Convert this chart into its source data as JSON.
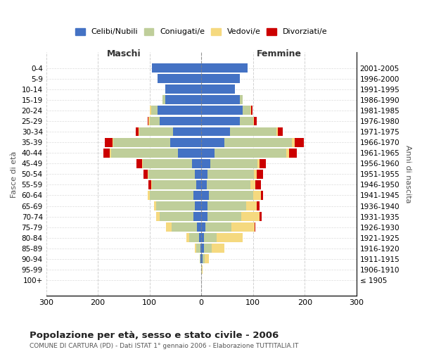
{
  "age_groups": [
    "100+",
    "95-99",
    "90-94",
    "85-89",
    "80-84",
    "75-79",
    "70-74",
    "65-69",
    "60-64",
    "55-59",
    "50-54",
    "45-49",
    "40-44",
    "35-39",
    "30-34",
    "25-29",
    "20-24",
    "15-19",
    "10-14",
    "5-9",
    "0-4"
  ],
  "birth_years": [
    "≤ 1905",
    "1906-1910",
    "1911-1915",
    "1916-1920",
    "1921-1925",
    "1926-1930",
    "1931-1935",
    "1936-1940",
    "1941-1945",
    "1946-1950",
    "1951-1955",
    "1956-1960",
    "1961-1965",
    "1966-1970",
    "1971-1975",
    "1976-1980",
    "1981-1985",
    "1986-1990",
    "1991-1995",
    "1996-2000",
    "2001-2005"
  ],
  "maschi": {
    "celibi": [
      0,
      0,
      1,
      2,
      4,
      8,
      15,
      12,
      15,
      10,
      12,
      18,
      45,
      60,
      55,
      80,
      85,
      70,
      70,
      85,
      95
    ],
    "coniugati": [
      0,
      0,
      2,
      8,
      20,
      50,
      65,
      75,
      85,
      85,
      90,
      95,
      130,
      110,
      65,
      20,
      12,
      5,
      0,
      0,
      0
    ],
    "vedovi": [
      0,
      0,
      0,
      2,
      5,
      10,
      8,
      5,
      3,
      2,
      2,
      2,
      2,
      2,
      2,
      2,
      2,
      0,
      0,
      0,
      0
    ],
    "divorziati": [
      0,
      0,
      0,
      0,
      0,
      0,
      0,
      0,
      0,
      5,
      8,
      10,
      12,
      15,
      5,
      2,
      0,
      0,
      0,
      0,
      0
    ]
  },
  "femmine": {
    "nubili": [
      0,
      0,
      2,
      5,
      5,
      8,
      12,
      12,
      15,
      10,
      12,
      18,
      25,
      45,
      55,
      75,
      80,
      75,
      65,
      75,
      90
    ],
    "coniugate": [
      0,
      1,
      5,
      15,
      25,
      50,
      65,
      75,
      85,
      85,
      90,
      90,
      140,
      130,
      90,
      25,
      15,
      5,
      0,
      0,
      0
    ],
    "vedove": [
      0,
      2,
      8,
      25,
      50,
      45,
      35,
      20,
      15,
      10,
      5,
      5,
      5,
      5,
      3,
      2,
      2,
      0,
      0,
      0,
      0
    ],
    "divorziate": [
      0,
      0,
      0,
      0,
      0,
      2,
      5,
      5,
      5,
      10,
      12,
      12,
      15,
      18,
      10,
      5,
      2,
      0,
      0,
      0,
      0
    ]
  },
  "colors": {
    "celibi_nubili": "#4472C4",
    "coniugati": "#BFCE9A",
    "vedovi": "#F5D97F",
    "divorziati": "#CC0000"
  },
  "title": "Popolazione per età, sesso e stato civile - 2006",
  "subtitle": "COMUNE DI CARTURA (PD) - Dati ISTAT 1° gennaio 2006 - Elaborazione TUTTITALIA.IT",
  "xlabel_left": "Maschi",
  "xlabel_right": "Femmine",
  "ylabel_left": "Fasce di età",
  "ylabel_right": "Anni di nascita",
  "xlim": 300,
  "legend_labels": [
    "Celibi/Nubili",
    "Coniugati/e",
    "Vedovi/e",
    "Divorziati/e"
  ],
  "background_color": "#ffffff",
  "grid_color": "#cccccc"
}
